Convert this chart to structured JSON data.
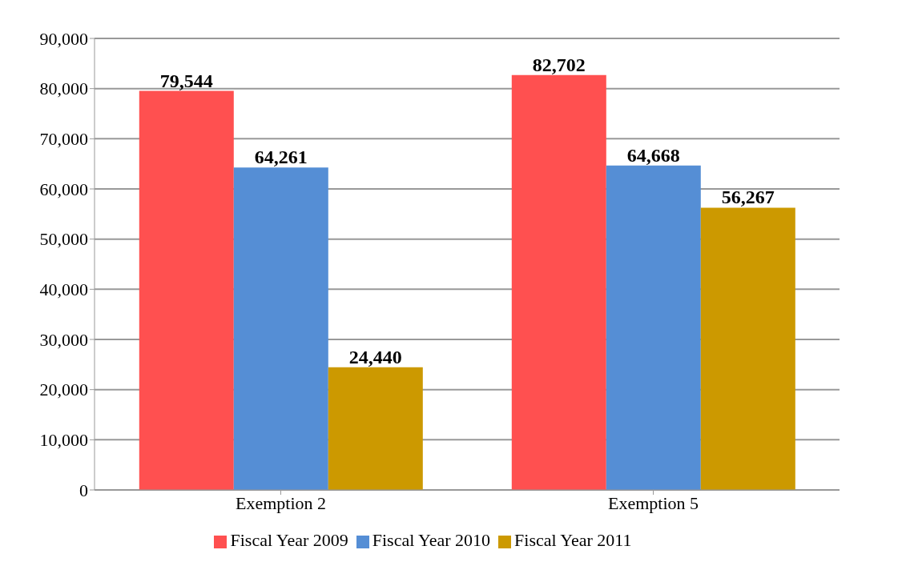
{
  "chart_data": {
    "type": "bar",
    "categories": [
      "Exemption 2",
      "Exemption 5"
    ],
    "series": [
      {
        "name": "Fiscal Year 2009",
        "color": "#ff5050",
        "values": [
          79544,
          82702
        ],
        "value_labels": [
          "79,544",
          "82,702"
        ]
      },
      {
        "name": "Fiscal Year 2010",
        "color": "#558ed5",
        "values": [
          64261,
          64668
        ],
        "value_labels": [
          "64,261",
          "64,668"
        ]
      },
      {
        "name": "Fiscal Year 2011",
        "color": "#cc9900",
        "values": [
          24440,
          56267
        ],
        "value_labels": [
          "24,440",
          "56,267"
        ]
      }
    ],
    "ylim": [
      0,
      90000
    ],
    "yticks": [
      {
        "value": 0,
        "label": "0"
      },
      {
        "value": 10000,
        "label": "10,000"
      },
      {
        "value": 20000,
        "label": "20,000"
      },
      {
        "value": 30000,
        "label": "30,000"
      },
      {
        "value": 40000,
        "label": "40,000"
      },
      {
        "value": 50000,
        "label": "50,000"
      },
      {
        "value": 60000,
        "label": "60,000"
      },
      {
        "value": 70000,
        "label": "70,000"
      },
      {
        "value": 80000,
        "label": "80,000"
      },
      {
        "value": 90000,
        "label": "90,000"
      }
    ],
    "grid": "y",
    "legend": "bottom"
  }
}
